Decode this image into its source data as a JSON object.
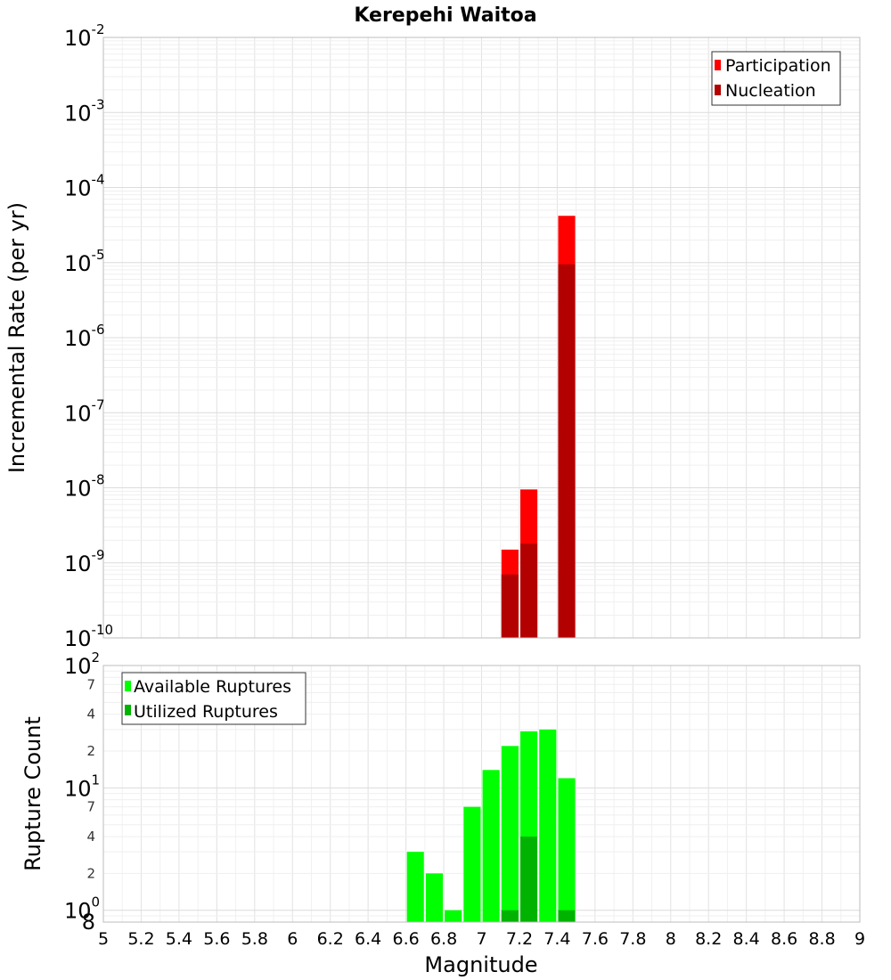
{
  "chart_data": [
    {
      "type": "bar",
      "title": "Kerepehi Waitoa",
      "xlabel": "",
      "ylabel": "Incremental Rate (per yr)",
      "yscale": "log",
      "ylim": [
        1e-10,
        0.01
      ],
      "xlim": [
        5,
        9
      ],
      "y_ticks": [
        {
          "base": "10",
          "exp": "-10"
        },
        {
          "base": "10",
          "exp": "-9"
        },
        {
          "base": "10",
          "exp": "-8"
        },
        {
          "base": "10",
          "exp": "-7"
        },
        {
          "base": "10",
          "exp": "-6"
        },
        {
          "base": "10",
          "exp": "-5"
        },
        {
          "base": "10",
          "exp": "-4"
        },
        {
          "base": "10",
          "exp": "-3"
        },
        {
          "base": "10",
          "exp": "-2"
        }
      ],
      "grid": true,
      "legend_position": "top-right",
      "series": [
        {
          "name": "Participation",
          "color": "#ff0000",
          "points": [
            [
              7.15,
              1.5e-09
            ],
            [
              7.25,
              9.5e-09
            ],
            [
              7.45,
              4.2e-05
            ]
          ]
        },
        {
          "name": "Nucleation",
          "color": "#b30000",
          "points": [
            [
              7.15,
              7e-10
            ],
            [
              7.25,
              1.8e-09
            ],
            [
              7.45,
              9.5e-06
            ]
          ]
        }
      ]
    },
    {
      "type": "bar",
      "xlabel": "Magnitude",
      "ylabel": "Rupture Count",
      "yscale": "log",
      "ylim": [
        0.8,
        100
      ],
      "xlim": [
        5,
        9
      ],
      "x_ticks": [
        "5",
        "5.2",
        "5.4",
        "5.6",
        "5.8",
        "6",
        "6.2",
        "6.4",
        "6.6",
        "6.8",
        "7",
        "7.2",
        "7.4",
        "7.6",
        "7.8",
        "8",
        "8.2",
        "8.4",
        "8.6",
        "8.8",
        "9"
      ],
      "y_major_ticks": [
        {
          "base": "10",
          "exp": "0"
        },
        {
          "base": "10",
          "exp": "1"
        },
        {
          "base": "10",
          "exp": "2"
        }
      ],
      "y_minor_ticks": [
        {
          "value": 0.8,
          "label": "8"
        },
        {
          "value": 2,
          "label": "2"
        },
        {
          "value": 4,
          "label": "4"
        },
        {
          "value": 7,
          "label": "7"
        },
        {
          "value": 20,
          "label": "2"
        },
        {
          "value": 40,
          "label": "4"
        },
        {
          "value": 70,
          "label": "7"
        }
      ],
      "grid": true,
      "legend_position": "top-left",
      "series": [
        {
          "name": "Available Ruptures",
          "color": "#00ff00",
          "points": [
            [
              6.65,
              3
            ],
            [
              6.75,
              2
            ],
            [
              6.85,
              1
            ],
            [
              6.95,
              7
            ],
            [
              7.05,
              14
            ],
            [
              7.15,
              22
            ],
            [
              7.25,
              29
            ],
            [
              7.35,
              30
            ],
            [
              7.45,
              12
            ]
          ]
        },
        {
          "name": "Utilized Ruptures",
          "color": "#00b300",
          "points": [
            [
              7.15,
              1
            ],
            [
              7.25,
              4
            ],
            [
              7.45,
              1
            ]
          ]
        }
      ]
    }
  ]
}
